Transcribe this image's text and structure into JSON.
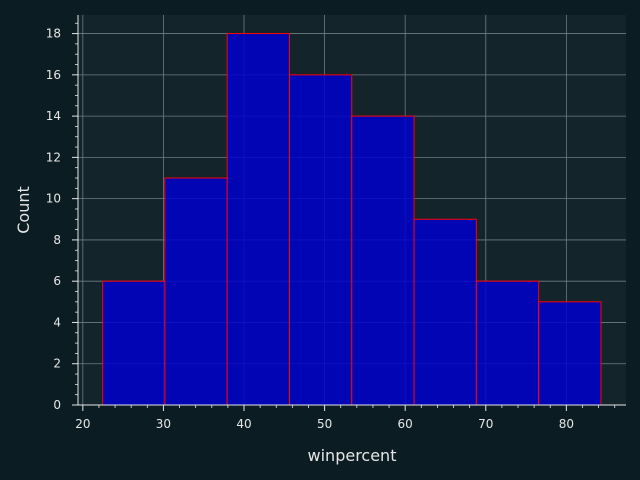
{
  "chart_data": {
    "type": "bar",
    "title": "",
    "xlabel": "winpercent",
    "ylabel": "Count",
    "bins": [
      {
        "x0": 22.45,
        "x1": 30.18,
        "count": 6
      },
      {
        "x0": 30.18,
        "x1": 37.91,
        "count": 11
      },
      {
        "x0": 37.91,
        "x1": 45.64,
        "count": 18
      },
      {
        "x0": 45.64,
        "x1": 53.37,
        "count": 16
      },
      {
        "x0": 53.37,
        "x1": 61.1,
        "count": 14
      },
      {
        "x0": 61.1,
        "x1": 68.83,
        "count": 9
      },
      {
        "x0": 68.83,
        "x1": 76.56,
        "count": 6
      },
      {
        "x0": 76.56,
        "x1": 84.29,
        "count": 5
      }
    ],
    "xlim": [
      19.4,
      87.4
    ],
    "ylim": [
      0,
      18.9
    ],
    "xticks": [
      20,
      30,
      40,
      50,
      60,
      70,
      80
    ],
    "yticks": [
      0,
      2,
      4,
      6,
      8,
      10,
      12,
      14,
      16,
      18
    ],
    "grid": true,
    "colors": {
      "background": "#0b1c22",
      "plot_background": "#13242a",
      "bar_fill": "#0000cc",
      "bar_edge": "#ff0000",
      "grid": "#6f7d82",
      "text": "#e6e6e6"
    }
  }
}
